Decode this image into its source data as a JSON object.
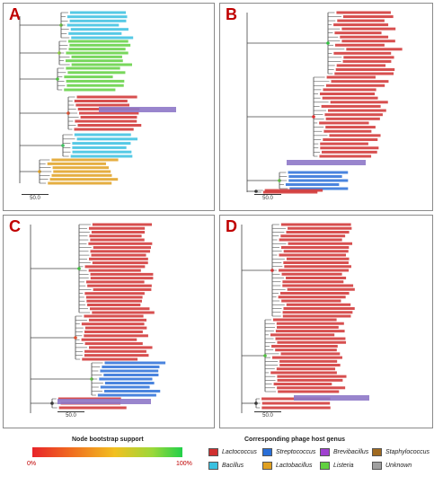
{
  "panels": [
    {
      "letter": "A",
      "scale": "50.0"
    },
    {
      "letter": "B",
      "scale": "50.0"
    },
    {
      "letter": "C",
      "scale": "50.0"
    },
    {
      "letter": "D",
      "scale": "50.0"
    }
  ],
  "legend": {
    "support_title": "Node bootstrap support",
    "support_min": "0%",
    "support_max": "100%",
    "genus_title": "Corresponding phage host genus",
    "genera": [
      {
        "name": "Lactococcus",
        "color": "#d03030"
      },
      {
        "name": "Streptococcus",
        "color": "#2a6fd8"
      },
      {
        "name": "Brevibacillus",
        "color": "#a040d0"
      },
      {
        "name": "Staphylococcus",
        "color": "#a06a20"
      },
      {
        "name": "Bacillus",
        "color": "#38c0e0"
      },
      {
        "name": "Lactobacillus",
        "color": "#e0a020"
      },
      {
        "name": "Listeria",
        "color": "#60d040"
      },
      {
        "name": "Unknown",
        "color": "#a0a0a0"
      }
    ]
  },
  "colors": {
    "lactococcus": "#d03030",
    "streptococcus": "#2a6fd8",
    "bacillus": "#38c0e0",
    "listeria": "#60d040",
    "brevibacillus": "#a040d0",
    "lactobacillus": "#e0a020",
    "staphylococcus": "#a06a20",
    "highlight": "#8e78c8",
    "panel_letter": "#c00000"
  }
}
